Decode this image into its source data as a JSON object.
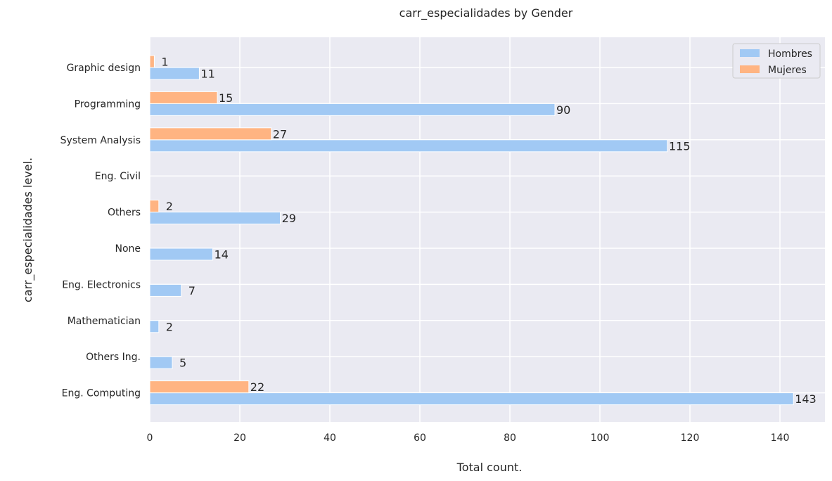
{
  "chart_data": {
    "type": "bar",
    "orientation": "horizontal",
    "title": "carr_especialidades by Gender",
    "xlabel": "Total count.",
    "ylabel": "carr_especialidades level.",
    "categories": [
      "Graphic design",
      "Programming",
      "System Analysis",
      "Eng. Civil",
      "Others",
      "None",
      "Eng. Electronics",
      "Mathematician",
      "Others Ing.",
      "Eng. Computing"
    ],
    "series": [
      {
        "name": "Hombres",
        "color": "#a1c9f4",
        "values": [
          11,
          90,
          115,
          0,
          29,
          14,
          7,
          2,
          5,
          143
        ],
        "labels": [
          "11",
          "90",
          "115",
          "",
          "29",
          "14",
          "7",
          "2",
          "5",
          "143"
        ]
      },
      {
        "name": "Mujeres",
        "color": "#ffb482",
        "values": [
          1,
          15,
          27,
          0,
          2,
          0,
          0,
          0,
          0,
          22
        ],
        "labels": [
          "1",
          "15",
          "27",
          "",
          "2",
          "",
          "",
          "",
          "",
          "22"
        ]
      }
    ],
    "xlim": [
      0,
      150
    ],
    "xticks": [
      0,
      20,
      40,
      60,
      80,
      100,
      120,
      140
    ],
    "grid": true,
    "legend_position": "top-right",
    "background_color": "#eaeaf2"
  }
}
